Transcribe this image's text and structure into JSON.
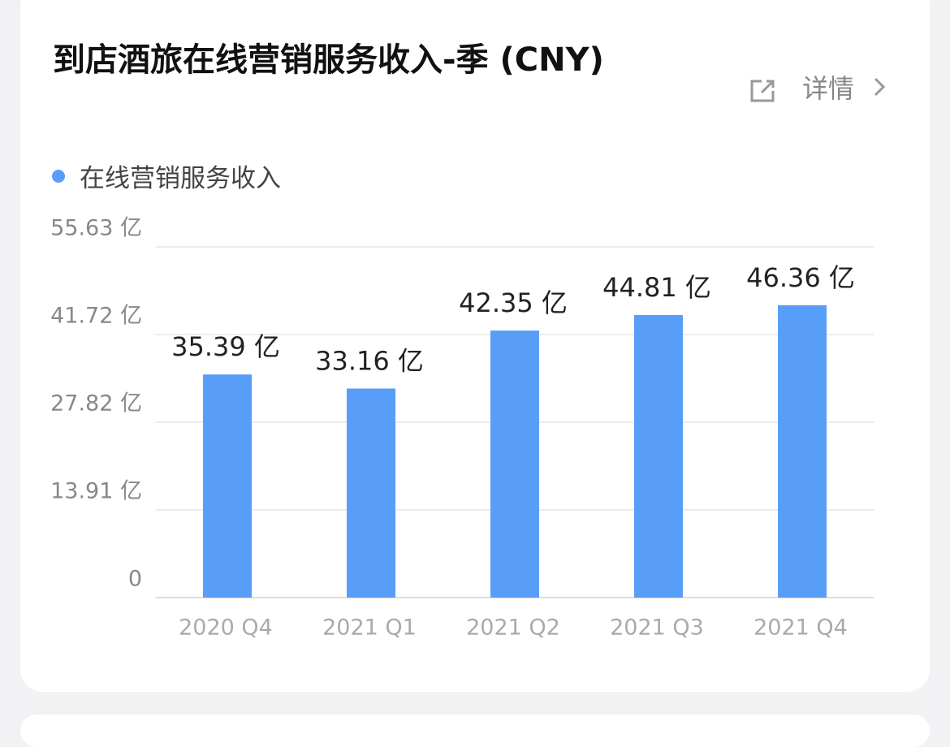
{
  "chart_data": {
    "type": "bar",
    "title": "到店酒旅在线营销服务收入-季 (CNY)",
    "link_text": "详情",
    "categories": [
      "2020 Q4",
      "2021 Q1",
      "2021 Q2",
      "2021 Q3",
      "2021 Q4"
    ],
    "series": [
      {
        "name": "在线营销服务收入",
        "color": "#589ef8",
        "values": [
          35.39,
          33.16,
          42.35,
          44.81,
          46.36
        ],
        "value_labels": [
          "35.39 亿",
          "33.16 亿",
          "42.35 亿",
          "44.81 亿",
          "46.36 亿"
        ]
      }
    ],
    "ylim": [
      0,
      55.63
    ],
    "yticks": [
      0,
      {
        "value": 13.91,
        "label": "13.91 亿"
      },
      {
        "value": 27.82,
        "label": "27.82 亿"
      },
      {
        "value": 41.72,
        "label": "41.72 亿"
      },
      {
        "value": 55.63,
        "label": "55.63 亿"
      }
    ],
    "grid": true
  }
}
